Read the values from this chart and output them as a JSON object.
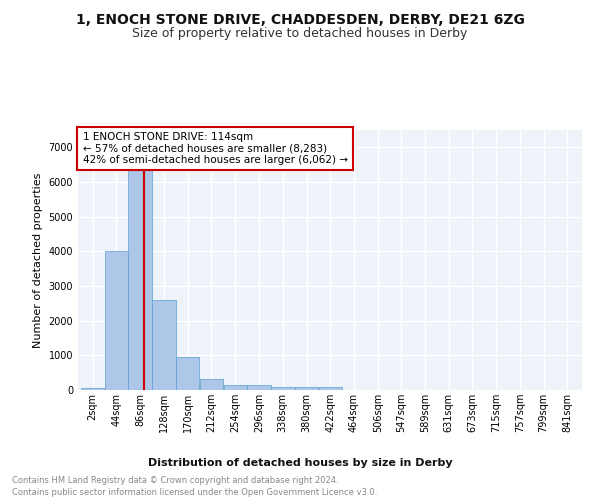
{
  "title": "1, ENOCH STONE DRIVE, CHADDESDEN, DERBY, DE21 6ZG",
  "subtitle": "Size of property relative to detached houses in Derby",
  "xlabel": "Distribution of detached houses by size in Derby",
  "ylabel": "Number of detached properties",
  "footnote1": "Contains HM Land Registry data © Crown copyright and database right 2024.",
  "footnote2": "Contains public sector information licensed under the Open Government Licence v3.0.",
  "bin_labels": [
    "2sqm",
    "44sqm",
    "86sqm",
    "128sqm",
    "170sqm",
    "212sqm",
    "254sqm",
    "296sqm",
    "338sqm",
    "380sqm",
    "422sqm",
    "464sqm",
    "506sqm",
    "547sqm",
    "589sqm",
    "631sqm",
    "673sqm",
    "715sqm",
    "757sqm",
    "799sqm",
    "841sqm"
  ],
  "bin_edges": [
    2,
    44,
    86,
    128,
    170,
    212,
    254,
    296,
    338,
    380,
    422,
    464,
    506,
    547,
    589,
    631,
    673,
    715,
    757,
    799,
    841
  ],
  "bin_width": 42,
  "bar_values": [
    70,
    4000,
    6500,
    2600,
    960,
    330,
    130,
    130,
    80,
    80,
    80,
    0,
    0,
    0,
    0,
    0,
    0,
    0,
    0,
    0
  ],
  "bar_color": "#aec6e8",
  "bar_edge_color": "#5a9fd4",
  "vline_x": 114,
  "vline_color": "#cc0000",
  "ylim": [
    0,
    7500
  ],
  "yticks": [
    0,
    1000,
    2000,
    3000,
    4000,
    5000,
    6000,
    7000
  ],
  "annotation_text": "1 ENOCH STONE DRIVE: 114sqm\n← 57% of detached houses are smaller (8,283)\n42% of semi-detached houses are larger (6,062) →",
  "annotation_box_color": "#ffffff",
  "annotation_box_edgecolor": "#cc0000",
  "background_color": "#eef2f9",
  "grid_color": "#ffffff",
  "title_fontsize": 10,
  "subtitle_fontsize": 9,
  "xlabel_fontsize": 8,
  "ylabel_fontsize": 8,
  "tick_fontsize": 7,
  "annot_fontsize": 7.5,
  "footnote_fontsize": 6
}
